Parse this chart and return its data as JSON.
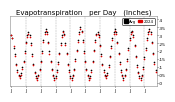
{
  "title": "Evapotranspiration   per Day   (Inches)",
  "background_color": "#ffffff",
  "plot_bg_color": "#ffffff",
  "grid_color": "#aaaaaa",
  "y_min": -0.02,
  "y_max": 0.42,
  "y_ticks": [
    0.0,
    0.05,
    0.1,
    0.15,
    0.2,
    0.25,
    0.3,
    0.35,
    0.4
  ],
  "y_tick_labels": [
    ".0",
    ".05",
    ".1",
    ".15",
    ".2",
    ".25",
    ".3",
    ".35",
    ".4"
  ],
  "series_black": [
    0.3,
    0.28,
    0.22,
    0.18,
    0.12,
    0.08,
    0.05,
    0.04,
    0.06,
    0.1,
    0.14,
    0.2,
    0.26,
    0.3,
    0.32,
    0.3,
    0.25,
    0.18,
    0.12,
    0.07,
    0.04,
    0.03,
    0.05,
    0.09,
    0.14,
    0.2,
    0.27,
    0.32,
    0.34,
    0.32,
    0.26,
    0.2,
    0.14,
    0.09,
    0.05,
    0.03,
    0.04,
    0.08,
    0.13,
    0.19,
    0.25,
    0.3,
    0.33,
    0.31,
    0.25,
    0.19,
    0.12,
    0.08,
    0.04,
    0.03,
    0.05,
    0.09,
    0.15,
    0.21,
    0.27,
    0.32,
    0.35,
    0.33,
    0.27,
    0.2,
    0.14,
    0.09,
    0.05,
    0.03,
    0.04,
    0.08,
    0.14,
    0.21,
    0.27,
    0.31,
    0.32,
    0.3,
    0.24,
    0.18,
    0.12,
    0.08,
    0.05,
    0.04,
    0.06,
    0.11,
    0.17,
    0.23,
    0.28,
    0.32,
    0.34,
    0.32,
    0.26,
    0.19,
    0.13,
    0.08,
    0.05,
    0.03,
    0.05,
    0.09,
    0.15,
    0.22,
    0.28,
    0.32,
    0.33,
    0.3,
    0.24,
    0.17,
    0.11,
    0.07,
    0.04,
    0.03,
    0.05,
    0.1,
    0.16,
    0.22,
    0.28,
    0.32,
    0.34,
    0.32,
    0.26,
    0.19,
    0.13,
    0.08
  ],
  "series_red": [
    0.3,
    0.28,
    0.23,
    0.17,
    0.11,
    0.07,
    0.04,
    0.03,
    0.05,
    0.09,
    0.13,
    0.19,
    0.25,
    0.29,
    0.31,
    0.29,
    0.24,
    0.17,
    0.11,
    0.06,
    0.03,
    0.02,
    0.04,
    0.08,
    0.13,
    0.19,
    0.26,
    0.31,
    0.33,
    0.31,
    0.25,
    0.18,
    0.13,
    0.08,
    0.04,
    0.02,
    0.03,
    0.07,
    0.12,
    0.18,
    0.24,
    0.29,
    0.32,
    0.3,
    0.24,
    0.18,
    0.11,
    0.07,
    0.03,
    0.02,
    0.04,
    0.08,
    0.14,
    0.2,
    0.26,
    0.31,
    0.34,
    0.32,
    0.26,
    0.19,
    0.13,
    0.08,
    0.04,
    0.02,
    0.03,
    0.07,
    0.13,
    0.2,
    0.26,
    0.3,
    0.31,
    0.29,
    0.23,
    0.17,
    0.11,
    0.07,
    0.04,
    0.03,
    0.05,
    0.1,
    0.16,
    0.22,
    0.27,
    0.31,
    0.33,
    0.31,
    0.25,
    0.18,
    0.12,
    0.07,
    0.04,
    0.02,
    0.04,
    0.08,
    0.14,
    0.21,
    0.27,
    0.31,
    0.32,
    0.29,
    0.23,
    0.16,
    0.1,
    0.06,
    0.03,
    0.02,
    0.04,
    0.09,
    0.15,
    0.21,
    0.27,
    0.31,
    0.33,
    0.31,
    0.25,
    0.18,
    0.12,
    0.07
  ],
  "vline_positions": [
    12,
    24,
    36,
    48,
    60,
    72,
    84,
    96,
    108
  ],
  "n_points": 118,
  "legend_label_black": "Avg",
  "legend_label_red": "2024",
  "title_fontsize": 5.0,
  "tick_fontsize": 3.2,
  "marker_size": 1.2,
  "dot_color_black": "#000000",
  "dot_color_red": "#dd0000"
}
